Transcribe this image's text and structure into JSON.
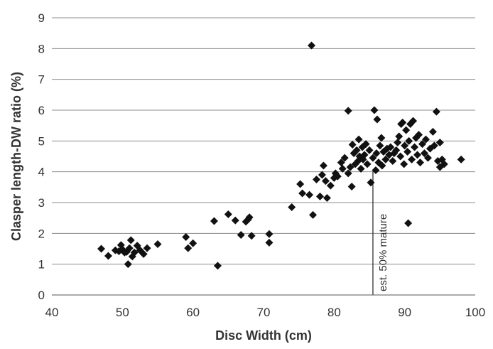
{
  "chart_data": {
    "type": "scatter",
    "title": "",
    "xlabel": "Disc Width (cm)",
    "ylabel": "Clasper length-DW ratio (%)",
    "xlim": [
      40,
      100
    ],
    "ylim": [
      0,
      9
    ],
    "xticks": [
      "40",
      "50",
      "60",
      "70",
      "80",
      "90",
      "100"
    ],
    "yticks": [
      "0",
      "1",
      "2",
      "3",
      "4",
      "5",
      "6",
      "7",
      "8",
      "9"
    ],
    "grid": "horizontal",
    "marker": "diamond",
    "marker_color": "#111111",
    "annotation": {
      "x": 85.5,
      "label": "est. 50% mature"
    },
    "points": [
      {
        "x": 47.0,
        "y": 1.5
      },
      {
        "x": 48.0,
        "y": 1.27
      },
      {
        "x": 49.0,
        "y": 1.45
      },
      {
        "x": 49.5,
        "y": 1.42
      },
      {
        "x": 49.8,
        "y": 1.62
      },
      {
        "x": 50.0,
        "y": 1.48
      },
      {
        "x": 50.3,
        "y": 1.38
      },
      {
        "x": 50.6,
        "y": 1.4
      },
      {
        "x": 50.8,
        "y": 1.0
      },
      {
        "x": 51.0,
        "y": 1.52
      },
      {
        "x": 51.2,
        "y": 1.78
      },
      {
        "x": 51.4,
        "y": 1.25
      },
      {
        "x": 51.7,
        "y": 1.38
      },
      {
        "x": 52.1,
        "y": 1.6
      },
      {
        "x": 52.5,
        "y": 1.45
      },
      {
        "x": 53.0,
        "y": 1.33
      },
      {
        "x": 53.5,
        "y": 1.52
      },
      {
        "x": 55.0,
        "y": 1.65
      },
      {
        "x": 59.0,
        "y": 1.88
      },
      {
        "x": 59.3,
        "y": 1.52
      },
      {
        "x": 60.0,
        "y": 1.68
      },
      {
        "x": 63.0,
        "y": 2.4
      },
      {
        "x": 63.5,
        "y": 0.95
      },
      {
        "x": 65.0,
        "y": 2.62
      },
      {
        "x": 66.0,
        "y": 2.42
      },
      {
        "x": 66.8,
        "y": 1.95
      },
      {
        "x": 67.5,
        "y": 2.38
      },
      {
        "x": 67.8,
        "y": 2.45
      },
      {
        "x": 68.0,
        "y": 2.52
      },
      {
        "x": 68.3,
        "y": 1.92
      },
      {
        "x": 70.8,
        "y": 1.98
      },
      {
        "x": 70.8,
        "y": 1.7
      },
      {
        "x": 74.0,
        "y": 2.85
      },
      {
        "x": 75.2,
        "y": 3.6
      },
      {
        "x": 75.5,
        "y": 3.3
      },
      {
        "x": 76.5,
        "y": 3.25
      },
      {
        "x": 76.8,
        "y": 8.1
      },
      {
        "x": 77.0,
        "y": 2.6
      },
      {
        "x": 77.5,
        "y": 3.75
      },
      {
        "x": 78.0,
        "y": 3.2
      },
      {
        "x": 78.3,
        "y": 3.9
      },
      {
        "x": 78.5,
        "y": 4.2
      },
      {
        "x": 78.8,
        "y": 3.7
      },
      {
        "x": 79.0,
        "y": 3.15
      },
      {
        "x": 79.5,
        "y": 3.55
      },
      {
        "x": 80.0,
        "y": 3.8
      },
      {
        "x": 80.2,
        "y": 3.95
      },
      {
        "x": 80.5,
        "y": 3.85
      },
      {
        "x": 81.0,
        "y": 4.3
      },
      {
        "x": 81.2,
        "y": 4.1
      },
      {
        "x": 81.5,
        "y": 4.45
      },
      {
        "x": 82.0,
        "y": 5.98
      },
      {
        "x": 82.0,
        "y": 3.95
      },
      {
        "x": 82.3,
        "y": 4.15
      },
      {
        "x": 82.5,
        "y": 3.52
      },
      {
        "x": 82.6,
        "y": 4.88
      },
      {
        "x": 82.8,
        "y": 4.6
      },
      {
        "x": 83.0,
        "y": 4.25
      },
      {
        "x": 83.2,
        "y": 4.7
      },
      {
        "x": 83.4,
        "y": 4.35
      },
      {
        "x": 83.5,
        "y": 5.05
      },
      {
        "x": 83.6,
        "y": 4.5
      },
      {
        "x": 83.8,
        "y": 4.1
      },
      {
        "x": 84.0,
        "y": 4.8
      },
      {
        "x": 84.1,
        "y": 4.4
      },
      {
        "x": 84.3,
        "y": 4.55
      },
      {
        "x": 84.5,
        "y": 4.9
      },
      {
        "x": 84.7,
        "y": 4.25
      },
      {
        "x": 85.0,
        "y": 4.7
      },
      {
        "x": 85.2,
        "y": 3.65
      },
      {
        "x": 85.5,
        "y": 4.45
      },
      {
        "x": 85.7,
        "y": 6.0
      },
      {
        "x": 85.9,
        "y": 4.05
      },
      {
        "x": 86.0,
        "y": 4.6
      },
      {
        "x": 86.1,
        "y": 5.7
      },
      {
        "x": 86.3,
        "y": 4.3
      },
      {
        "x": 86.5,
        "y": 4.85
      },
      {
        "x": 86.7,
        "y": 5.1
      },
      {
        "x": 86.8,
        "y": 4.2
      },
      {
        "x": 87.0,
        "y": 4.65
      },
      {
        "x": 87.3,
        "y": 4.4
      },
      {
        "x": 87.5,
        "y": 4.75
      },
      {
        "x": 87.8,
        "y": 4.55
      },
      {
        "x": 88.0,
        "y": 4.8
      },
      {
        "x": 88.3,
        "y": 4.35
      },
      {
        "x": 88.5,
        "y": 4.6
      },
      {
        "x": 88.8,
        "y": 4.7
      },
      {
        "x": 89.0,
        "y": 4.95
      },
      {
        "x": 89.2,
        "y": 5.15
      },
      {
        "x": 89.4,
        "y": 4.5
      },
      {
        "x": 89.5,
        "y": 5.55
      },
      {
        "x": 89.7,
        "y": 5.6
      },
      {
        "x": 89.9,
        "y": 4.25
      },
      {
        "x": 90.0,
        "y": 4.85
      },
      {
        "x": 90.2,
        "y": 5.35
      },
      {
        "x": 90.4,
        "y": 4.65
      },
      {
        "x": 90.5,
        "y": 2.33
      },
      {
        "x": 90.6,
        "y": 5.0
      },
      {
        "x": 90.8,
        "y": 5.55
      },
      {
        "x": 91.0,
        "y": 4.4
      },
      {
        "x": 91.2,
        "y": 5.65
      },
      {
        "x": 91.4,
        "y": 4.8
      },
      {
        "x": 91.6,
        "y": 5.1
      },
      {
        "x": 91.8,
        "y": 4.55
      },
      {
        "x": 92.0,
        "y": 5.2
      },
      {
        "x": 92.2,
        "y": 4.3
      },
      {
        "x": 92.5,
        "y": 4.9
      },
      {
        "x": 92.8,
        "y": 4.6
      },
      {
        "x": 93.0,
        "y": 5.05
      },
      {
        "x": 93.3,
        "y": 4.45
      },
      {
        "x": 93.6,
        "y": 4.75
      },
      {
        "x": 94.0,
        "y": 5.3
      },
      {
        "x": 94.2,
        "y": 4.85
      },
      {
        "x": 94.5,
        "y": 5.95
      },
      {
        "x": 94.7,
        "y": 4.35
      },
      {
        "x": 95.0,
        "y": 4.95
      },
      {
        "x": 95.0,
        "y": 4.15
      },
      {
        "x": 95.3,
        "y": 4.4
      },
      {
        "x": 95.6,
        "y": 4.25
      },
      {
        "x": 98.0,
        "y": 4.4
      }
    ]
  }
}
